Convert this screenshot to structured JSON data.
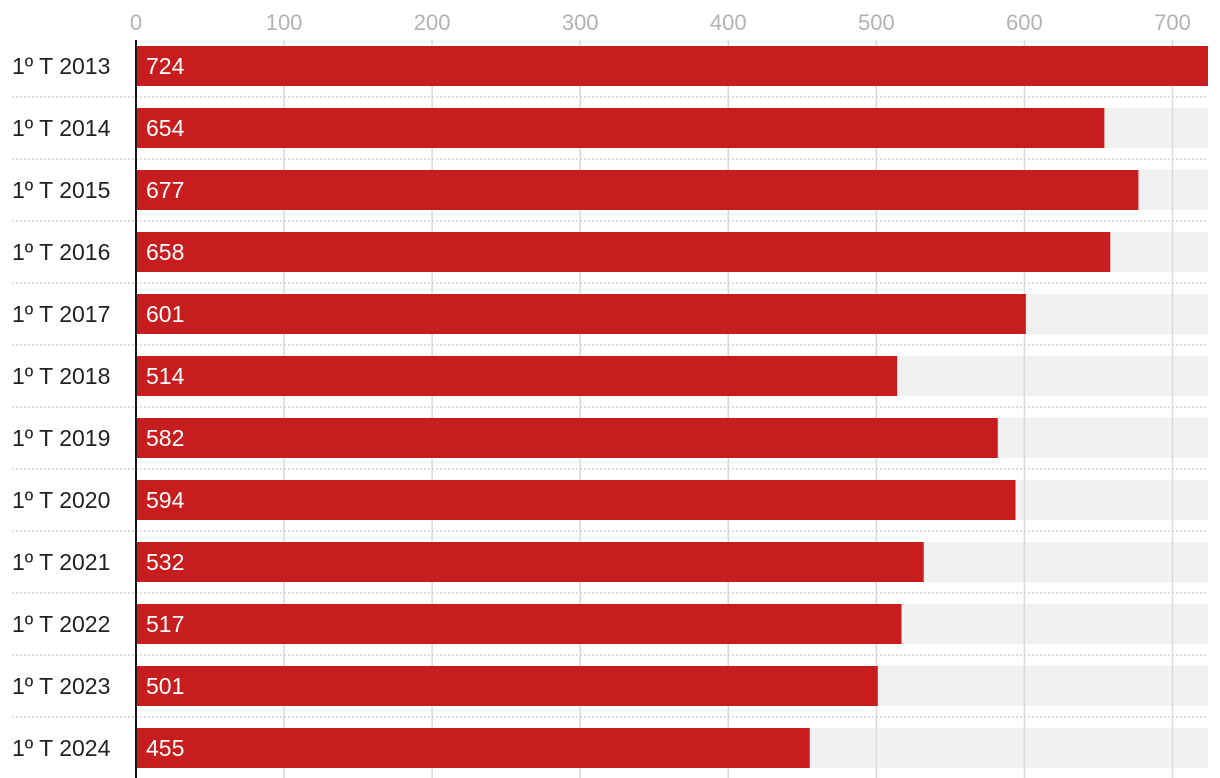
{
  "chart_data": {
    "type": "bar",
    "orientation": "horizontal",
    "categories": [
      "1º T 2013",
      "1º T 2014",
      "1º T 2015",
      "1º T 2016",
      "1º T 2017",
      "1º T 2018",
      "1º T 2019",
      "1º T 2020",
      "1º T 2021",
      "1º T 2022",
      "1º T 2023",
      "1º T 2024"
    ],
    "values": [
      724,
      654,
      677,
      658,
      601,
      514,
      582,
      594,
      532,
      517,
      501,
      455
    ],
    "value_labels": [
      "724",
      "654",
      "677",
      "658",
      "601",
      "514",
      "582",
      "594",
      "532",
      "517",
      "501",
      "455"
    ],
    "x_ticks": [
      0,
      100,
      200,
      300,
      400,
      500,
      600,
      700
    ],
    "xlim": [
      0,
      724
    ],
    "axis_position": "top",
    "grid": true,
    "title": "",
    "xlabel": "",
    "ylabel": ""
  },
  "colors": {
    "bar": "#c81d1f",
    "track": "#f1f1f1",
    "grid": "#d9d9d9",
    "row_separator": "#cfcfcf",
    "axis": "#1a1a1a"
  }
}
